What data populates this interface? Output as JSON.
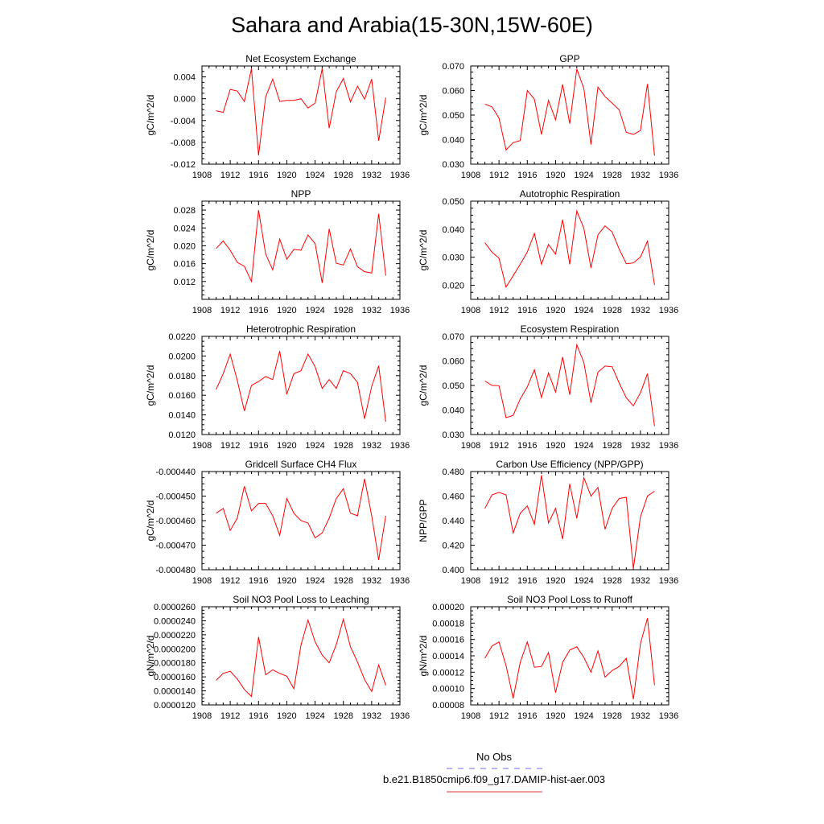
{
  "figure": {
    "title": "Sahara and Arabia(15-30N,15W-60E)",
    "legend": [
      {
        "label": "No Obs",
        "color": "#6b6bff",
        "dash": true
      },
      {
        "label": "b.e21.B1850cmip6.f09_g17.DAMIP-hist-aer.003",
        "color": "#e8303a",
        "dash": false
      }
    ]
  },
  "chart_data": [
    {
      "type": "line",
      "title": "Net Ecosystem Exchange",
      "ylabel": "gC/m^2/d",
      "xlim": [
        1908,
        1936
      ],
      "xticks": [
        1908,
        1912,
        1916,
        1920,
        1924,
        1928,
        1932,
        1936
      ],
      "ylim": [
        -0.012,
        0.006
      ],
      "yticks": [
        -0.012,
        -0.008,
        -0.004,
        0.0,
        0.004
      ],
      "ytick_labels": [
        "-0.012",
        "-0.008",
        "-0.004",
        "0.000",
        "0.004"
      ],
      "x": [
        1910,
        1911,
        1912,
        1913,
        1914,
        1915,
        1916,
        1917,
        1918,
        1919,
        1920,
        1921,
        1922,
        1923,
        1924,
        1925,
        1926,
        1927,
        1928,
        1929,
        1930,
        1931,
        1932,
        1933,
        1934
      ],
      "series": [
        {
          "color": "#ff0000",
          "values": [
            -0.0022,
            -0.0025,
            0.0017,
            0.0014,
            -0.0005,
            0.0055,
            -0.0104,
            0.0003,
            0.0036,
            -0.0005,
            -0.0003,
            -0.0003,
            0.0,
            -0.0017,
            -0.0008,
            0.0055,
            -0.0054,
            0.0013,
            0.0037,
            -0.0006,
            0.0023,
            -0.0001,
            0.0036,
            -0.0077,
            0.0002
          ]
        }
      ]
    },
    {
      "type": "line",
      "title": "GPP",
      "ylabel": "gC/m^2/d",
      "xlim": [
        1908,
        1936
      ],
      "xticks": [
        1908,
        1912,
        1916,
        1920,
        1924,
        1928,
        1932,
        1936
      ],
      "ylim": [
        0.03,
        0.07
      ],
      "yticks": [
        0.03,
        0.04,
        0.05,
        0.06,
        0.07
      ],
      "ytick_labels": [
        "0.030",
        "0.040",
        "0.050",
        "0.060",
        "0.070"
      ],
      "x": [
        1910,
        1911,
        1912,
        1913,
        1914,
        1915,
        1916,
        1917,
        1918,
        1919,
        1920,
        1921,
        1922,
        1923,
        1924,
        1925,
        1926,
        1927,
        1928,
        1929,
        1930,
        1931,
        1932,
        1933,
        1934
      ],
      "series": [
        {
          "color": "#ff0000",
          "values": [
            0.0545,
            0.0533,
            0.0488,
            0.0358,
            0.0388,
            0.0396,
            0.06,
            0.0565,
            0.0421,
            0.056,
            0.0481,
            0.0625,
            0.0465,
            0.0688,
            0.0608,
            0.038,
            0.0614,
            0.0575,
            0.0549,
            0.0521,
            0.043,
            0.0421,
            0.0437,
            0.0627,
            0.0335
          ]
        }
      ]
    },
    {
      "type": "line",
      "title": "NPP",
      "ylabel": "gC/m^2/d",
      "xlim": [
        1908,
        1936
      ],
      "xticks": [
        1908,
        1912,
        1916,
        1920,
        1924,
        1928,
        1932,
        1936
      ],
      "ylim": [
        0.008,
        0.03
      ],
      "yticks": [
        0.012,
        0.016,
        0.02,
        0.024,
        0.028
      ],
      "ytick_labels": [
        "0.012",
        "0.016",
        "0.020",
        "0.024",
        "0.028"
      ],
      "x": [
        1910,
        1911,
        1912,
        1913,
        1914,
        1915,
        1916,
        1917,
        1918,
        1919,
        1920,
        1921,
        1922,
        1923,
        1924,
        1925,
        1926,
        1927,
        1928,
        1929,
        1930,
        1931,
        1932,
        1933,
        1934
      ],
      "series": [
        {
          "color": "#ff0000",
          "values": [
            0.0194,
            0.0211,
            0.019,
            0.0163,
            0.0154,
            0.012,
            0.028,
            0.0182,
            0.0146,
            0.0215,
            0.017,
            0.0192,
            0.019,
            0.0224,
            0.0205,
            0.0117,
            0.0238,
            0.0161,
            0.0157,
            0.0193,
            0.0153,
            0.0142,
            0.0139,
            0.0272,
            0.0133
          ]
        }
      ]
    },
    {
      "type": "line",
      "title": "Autotrophic Respiration",
      "ylabel": "gC/m^2/d",
      "xlim": [
        1908,
        1936
      ],
      "xticks": [
        1908,
        1912,
        1916,
        1920,
        1924,
        1928,
        1932,
        1936
      ],
      "ylim": [
        0.015,
        0.05
      ],
      "yticks": [
        0.02,
        0.03,
        0.04,
        0.05
      ],
      "ytick_labels": [
        "0.020",
        "0.030",
        "0.040",
        "0.050"
      ],
      "x": [
        1910,
        1911,
        1912,
        1913,
        1914,
        1915,
        1916,
        1917,
        1918,
        1919,
        1920,
        1921,
        1922,
        1923,
        1924,
        1925,
        1926,
        1927,
        1928,
        1929,
        1930,
        1931,
        1932,
        1933,
        1934
      ],
      "series": [
        {
          "color": "#ff0000",
          "values": [
            0.0352,
            0.0318,
            0.0297,
            0.0194,
            0.0234,
            0.0275,
            0.0319,
            0.0385,
            0.0275,
            0.0346,
            0.0311,
            0.0434,
            0.0275,
            0.0465,
            0.0403,
            0.0262,
            0.038,
            0.0412,
            0.039,
            0.0329,
            0.0277,
            0.028,
            0.0301,
            0.0357,
            0.0201
          ]
        }
      ]
    },
    {
      "type": "line",
      "title": "Heterotrophic Respiration",
      "ylabel": "gC/m^2/d",
      "xlim": [
        1908,
        1936
      ],
      "xticks": [
        1908,
        1912,
        1916,
        1920,
        1924,
        1928,
        1932,
        1936
      ],
      "ylim": [
        0.012,
        0.022
      ],
      "yticks": [
        0.012,
        0.014,
        0.016,
        0.018,
        0.02,
        0.022
      ],
      "ytick_labels": [
        "0.0120",
        "0.0140",
        "0.0160",
        "0.0180",
        "0.0200",
        "0.0220"
      ],
      "x": [
        1910,
        1911,
        1912,
        1913,
        1914,
        1915,
        1916,
        1917,
        1918,
        1919,
        1920,
        1921,
        1922,
        1923,
        1924,
        1925,
        1926,
        1927,
        1928,
        1929,
        1930,
        1931,
        1932,
        1933,
        1934
      ],
      "series": [
        {
          "color": "#ff0000",
          "values": [
            0.0166,
            0.0182,
            0.0202,
            0.0175,
            0.0144,
            0.017,
            0.0174,
            0.0179,
            0.0176,
            0.0205,
            0.0161,
            0.0182,
            0.0185,
            0.0202,
            0.0189,
            0.0167,
            0.0176,
            0.0167,
            0.0185,
            0.0182,
            0.0173,
            0.0136,
            0.0169,
            0.019,
            0.0133
          ]
        }
      ]
    },
    {
      "type": "line",
      "title": "Ecosystem Respiration",
      "ylabel": "gC/m^2/d",
      "xlim": [
        1908,
        1936
      ],
      "xticks": [
        1908,
        1912,
        1916,
        1920,
        1924,
        1928,
        1932,
        1936
      ],
      "ylim": [
        0.03,
        0.07
      ],
      "yticks": [
        0.03,
        0.04,
        0.05,
        0.06,
        0.07
      ],
      "ytick_labels": [
        "0.030",
        "0.040",
        "0.050",
        "0.060",
        "0.070"
      ],
      "x": [
        1910,
        1911,
        1912,
        1913,
        1914,
        1915,
        1916,
        1917,
        1918,
        1919,
        1920,
        1921,
        1922,
        1923,
        1924,
        1925,
        1926,
        1927,
        1928,
        1929,
        1930,
        1931,
        1932,
        1933,
        1934
      ],
      "series": [
        {
          "color": "#ff0000",
          "values": [
            0.0518,
            0.05,
            0.0499,
            0.0369,
            0.0378,
            0.0445,
            0.0494,
            0.0564,
            0.0451,
            0.0551,
            0.0473,
            0.0616,
            0.0462,
            0.0666,
            0.0593,
            0.043,
            0.0554,
            0.0579,
            0.0576,
            0.051,
            0.045,
            0.0417,
            0.047,
            0.0548,
            0.0334
          ]
        }
      ]
    },
    {
      "type": "line",
      "title": "Gridcell Surface CH4 Flux",
      "ylabel": "gC/m^2/d",
      "xlim": [
        1908,
        1936
      ],
      "xticks": [
        1908,
        1912,
        1916,
        1920,
        1924,
        1928,
        1932,
        1936
      ],
      "ylim": [
        -0.00048,
        -0.00044
      ],
      "yticks": [
        -0.00048,
        -0.00047,
        -0.00046,
        -0.00045,
        -0.00044
      ],
      "ytick_labels": [
        "-0.000480",
        "-0.000470",
        "-0.000460",
        "-0.000450",
        "-0.000440"
      ],
      "x": [
        1910,
        1911,
        1912,
        1913,
        1914,
        1915,
        1916,
        1917,
        1918,
        1919,
        1920,
        1921,
        1922,
        1923,
        1924,
        1925,
        1926,
        1927,
        1928,
        1929,
        1930,
        1931,
        1932,
        1933,
        1934
      ],
      "series": [
        {
          "color": "#ff0000",
          "values": [
            -0.000457,
            -0.000455,
            -0.000464,
            -0.000459,
            -0.000446,
            -0.000456,
            -0.000453,
            -0.000453,
            -0.000458,
            -0.000466,
            -0.000451,
            -0.000457,
            -0.00046,
            -0.000461,
            -0.000467,
            -0.000465,
            -0.000459,
            -0.000451,
            -0.000447,
            -0.000457,
            -0.000458,
            -0.000443,
            -0.000458,
            -0.000476,
            -0.000458
          ]
        }
      ]
    },
    {
      "type": "line",
      "title": "Carbon Use Efficiency (NPP/GPP)",
      "ylabel": "NPP/GPP",
      "xlim": [
        1908,
        1936
      ],
      "xticks": [
        1908,
        1912,
        1916,
        1920,
        1924,
        1928,
        1932,
        1936
      ],
      "ylim": [
        0.4,
        0.48
      ],
      "yticks": [
        0.4,
        0.42,
        0.44,
        0.46,
        0.48
      ],
      "ytick_labels": [
        "0.400",
        "0.420",
        "0.440",
        "0.460",
        "0.480"
      ],
      "x": [
        1910,
        1911,
        1912,
        1913,
        1914,
        1915,
        1916,
        1917,
        1918,
        1919,
        1920,
        1921,
        1922,
        1923,
        1924,
        1925,
        1926,
        1927,
        1928,
        1929,
        1930,
        1931,
        1932,
        1933,
        1934
      ],
      "series": [
        {
          "color": "#ff0000",
          "values": [
            0.45,
            0.461,
            0.463,
            0.461,
            0.43,
            0.446,
            0.452,
            0.437,
            0.477,
            0.438,
            0.45,
            0.425,
            0.47,
            0.442,
            0.475,
            0.46,
            0.467,
            0.433,
            0.45,
            0.458,
            0.459,
            0.401,
            0.443,
            0.46,
            0.464
          ]
        }
      ]
    },
    {
      "type": "line",
      "title": "Soil NO3 Pool Loss to Leaching",
      "ylabel": "gN/m^2/d",
      "xlim": [
        1908,
        1936
      ],
      "xticks": [
        1908,
        1912,
        1916,
        1920,
        1924,
        1928,
        1932,
        1936
      ],
      "ylim": [
        1.2e-05,
        2.6e-05
      ],
      "yticks": [
        1.2e-05,
        1.4e-05,
        1.6e-05,
        1.8e-05,
        2e-05,
        2.2e-05,
        2.4e-05,
        2.6e-05
      ],
      "ytick_labels": [
        "0.0000120",
        "0.0000140",
        "0.0000160",
        "0.0000180",
        "0.0000200",
        "0.0000220",
        "0.0000240",
        "0.0000260"
      ],
      "x": [
        1910,
        1911,
        1912,
        1913,
        1914,
        1915,
        1916,
        1917,
        1918,
        1919,
        1920,
        1921,
        1922,
        1923,
        1924,
        1925,
        1926,
        1927,
        1928,
        1929,
        1930,
        1931,
        1932,
        1933,
        1934
      ],
      "series": [
        {
          "color": "#ff0000",
          "values": [
            1.55e-05,
            1.65e-05,
            1.68e-05,
            1.57e-05,
            1.42e-05,
            1.32e-05,
            2.17e-05,
            1.63e-05,
            1.7e-05,
            1.65e-05,
            1.61e-05,
            1.43e-05,
            2.05e-05,
            2.41e-05,
            2.1e-05,
            1.91e-05,
            1.8e-05,
            2.06e-05,
            2.42e-05,
            2.03e-05,
            1.81e-05,
            1.56e-05,
            1.39e-05,
            1.77e-05,
            1.48e-05
          ]
        }
      ]
    },
    {
      "type": "line",
      "title": "Soil NO3 Pool Loss to Runoff",
      "ylabel": "gN/m^2/d",
      "xlim": [
        1908,
        1936
      ],
      "xticks": [
        1908,
        1912,
        1916,
        1920,
        1924,
        1928,
        1932,
        1936
      ],
      "ylim": [
        8e-05,
        0.0002
      ],
      "yticks": [
        8e-05,
        0.0001,
        0.00012,
        0.00014,
        0.00016,
        0.00018,
        0.0002
      ],
      "ytick_labels": [
        "0.00008",
        "0.00010",
        "0.00012",
        "0.00014",
        "0.00016",
        "0.00018",
        "0.00020"
      ],
      "x": [
        1910,
        1911,
        1912,
        1913,
        1914,
        1915,
        1916,
        1917,
        1918,
        1919,
        1920,
        1921,
        1922,
        1923,
        1924,
        1925,
        1926,
        1927,
        1928,
        1929,
        1930,
        1931,
        1932,
        1933,
        1934
      ],
      "series": [
        {
          "color": "#ff0000",
          "values": [
            0.000137,
            0.000152,
            0.000157,
            0.000128,
            8.8e-05,
            0.000132,
            0.000157,
            0.000126,
            0.000127,
            0.000144,
            9.5e-05,
            0.000132,
            0.000147,
            0.000151,
            0.000138,
            0.00012,
            0.000146,
            0.000114,
            0.000122,
            0.000127,
            0.000137,
            8.7e-05,
            0.000155,
            0.000186,
            0.000104
          ]
        }
      ]
    }
  ]
}
